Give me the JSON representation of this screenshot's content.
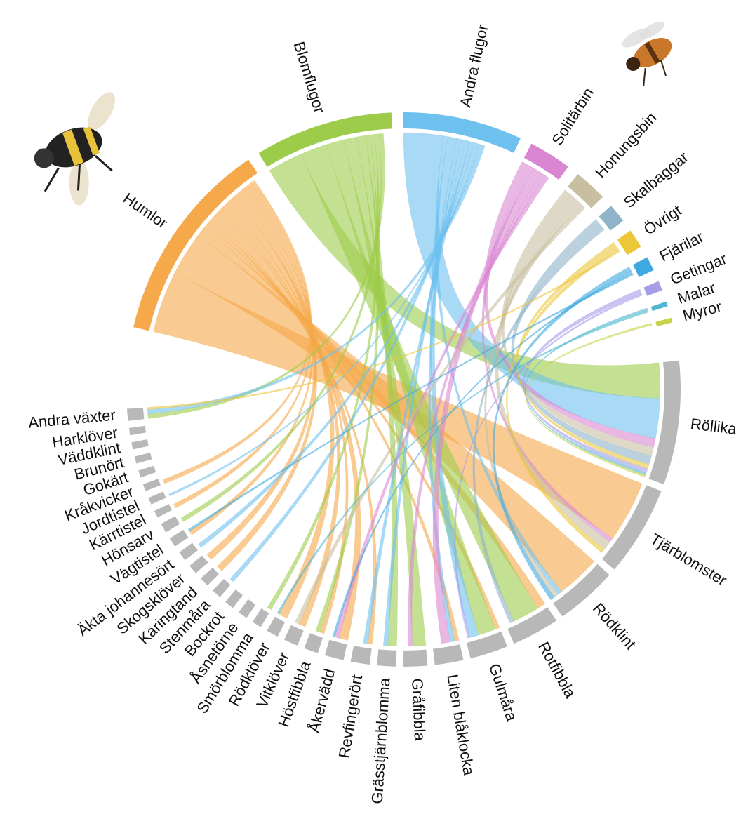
{
  "chart_data": {
    "type": "chord",
    "insects": [
      {
        "name": "Humlor",
        "color": "#f5a94a",
        "value": 43,
        "flows": [
          0,
          14,
          10,
          2,
          1,
          1,
          0,
          0,
          1,
          2,
          1,
          1.5,
          2,
          0,
          0,
          0,
          0,
          1.5,
          1.5,
          0,
          1,
          0,
          1,
          0,
          1,
          0,
          0,
          0,
          0,
          0
        ]
      },
      {
        "name": "Blomflugor",
        "color": "#9ccc4a",
        "value": 29,
        "flows": [
          8,
          0,
          0,
          6,
          4,
          0,
          3,
          2,
          0,
          0,
          1,
          0,
          0,
          1,
          0,
          0,
          0,
          0,
          0,
          0,
          0,
          1,
          0,
          0,
          0,
          0,
          0,
          0,
          0,
          1
        ]
      },
      {
        "name": "Andra flugor",
        "color": "#6ec0ef",
        "value": 25,
        "flows": [
          9,
          0,
          1,
          0,
          2,
          1,
          0,
          1,
          1,
          0,
          0,
          0,
          0,
          0,
          0,
          0,
          1,
          0,
          0,
          1,
          0,
          0,
          0,
          0.5,
          0,
          0,
          0,
          0,
          0,
          1
        ]
      },
      {
        "name": "Solitärbin",
        "color": "#d987d2",
        "value": 9,
        "flows": [
          2,
          1,
          0,
          0,
          0,
          2,
          1,
          0,
          0,
          1,
          0,
          0,
          0,
          0,
          0,
          0,
          0,
          0,
          0,
          0,
          0,
          0,
          0,
          0,
          0,
          0,
          0,
          0,
          0,
          0
        ]
      },
      {
        "name": "Honungsbin",
        "color": "#c8bea0",
        "value": 7,
        "flows": [
          2,
          2,
          1,
          0,
          0,
          0,
          0,
          0,
          0,
          0,
          0,
          1,
          0,
          0,
          0,
          0,
          0,
          0,
          0,
          0,
          0,
          0,
          0,
          0,
          0,
          0,
          0,
          0,
          0,
          0
        ]
      },
      {
        "name": "Skalbaggar",
        "color": "#8fb3c8",
        "value": 4,
        "flows": [
          2,
          0,
          0,
          1,
          0,
          0,
          0,
          0,
          0,
          0,
          0,
          0,
          0,
          0,
          0,
          0,
          0,
          0,
          0,
          0,
          0,
          0,
          0,
          0,
          0,
          0,
          0,
          0,
          0,
          0
        ]
      },
      {
        "name": "Övrigt",
        "color": "#ecc73a",
        "value": 4,
        "flows": [
          1,
          1,
          0,
          0,
          0,
          0,
          0,
          0,
          0,
          0,
          0,
          0,
          0,
          0,
          0,
          0,
          0,
          0,
          0,
          0,
          0,
          0,
          0,
          0,
          0,
          0,
          0,
          0,
          0,
          0.5
        ]
      },
      {
        "name": "Fjärilar",
        "color": "#3da9e0",
        "value": 3,
        "flows": [
          0,
          0,
          1,
          0,
          0,
          0,
          0,
          0,
          0,
          0.5,
          0,
          0,
          0,
          0,
          0,
          0,
          0,
          0,
          0,
          0,
          0.5,
          0,
          0,
          0,
          0,
          0,
          0,
          0,
          0,
          0
        ]
      },
      {
        "name": "Getingar",
        "color": "#a49de8",
        "value": 2,
        "flows": [
          1,
          0,
          0,
          0,
          0.5,
          0,
          0,
          0,
          0,
          0,
          0,
          0,
          0,
          0,
          0,
          0,
          0,
          0,
          0,
          0,
          0,
          0,
          0,
          0,
          0,
          0,
          0,
          0,
          0,
          0
        ]
      },
      {
        "name": "Malar",
        "color": "#4fb8d0",
        "value": 1,
        "flows": [
          0.5,
          0,
          0,
          0,
          0,
          0,
          0,
          0,
          0,
          0,
          0,
          0,
          0.5,
          0,
          0,
          0,
          0,
          0,
          0,
          0,
          0,
          0,
          0,
          0,
          0,
          0,
          0,
          0,
          0,
          0
        ]
      },
      {
        "name": "Myror",
        "color": "#c8d24a",
        "value": 1,
        "flows": [
          0.5,
          0,
          0,
          0,
          0,
          0,
          0,
          0,
          0,
          0,
          0,
          0,
          0,
          0,
          0,
          0,
          0,
          0,
          0,
          0,
          0,
          0,
          0,
          0,
          0,
          0,
          0,
          0,
          0,
          0
        ]
      }
    ],
    "plant_color": "#b8b8b8",
    "plants": [
      {
        "name": "Röllika",
        "value": 26
      },
      {
        "name": "Tjärblomster",
        "value": 19
      },
      {
        "name": "Rödklint",
        "value": 13
      },
      {
        "name": "Rotfibbla",
        "value": 10
      },
      {
        "name": "Gulmåra",
        "value": 8
      },
      {
        "name": "Liten blåklocka",
        "value": 6
      },
      {
        "name": "Gråfibbla",
        "value": 5
      },
      {
        "name": "Grässtjärnblomma",
        "value": 4
      },
      {
        "name": "Revfingerört",
        "value": 4
      },
      {
        "name": "Åkervädd",
        "value": 4
      },
      {
        "name": "Höstfibbla",
        "value": 3
      },
      {
        "name": "Vitklöver",
        "value": 3
      },
      {
        "name": "Rödklöver",
        "value": 2.5
      },
      {
        "name": "Smörblomma",
        "value": 2
      },
      {
        "name": "Åsnetörne",
        "value": 2
      },
      {
        "name": "Bockrot",
        "value": 2
      },
      {
        "name": "Stenmåra",
        "value": 2
      },
      {
        "name": "Käringtand",
        "value": 2
      },
      {
        "name": "Skogsklöver",
        "value": 2
      },
      {
        "name": "Äkta johannesört",
        "value": 2
      },
      {
        "name": "Vägtistel",
        "value": 2
      },
      {
        "name": "Hönsarv",
        "value": 2
      },
      {
        "name": "Kärrtistel",
        "value": 1.5
      },
      {
        "name": "Jordtistel",
        "value": 1.5
      },
      {
        "name": "Kråkvicker",
        "value": 1.5
      },
      {
        "name": "Gokärt",
        "value": 1.5
      },
      {
        "name": "Brunört",
        "value": 1.5
      },
      {
        "name": "Väddklint",
        "value": 1.5
      },
      {
        "name": "Harklöver",
        "value": 1.5
      },
      {
        "name": "Andra växter",
        "value": 2.5
      }
    ]
  }
}
